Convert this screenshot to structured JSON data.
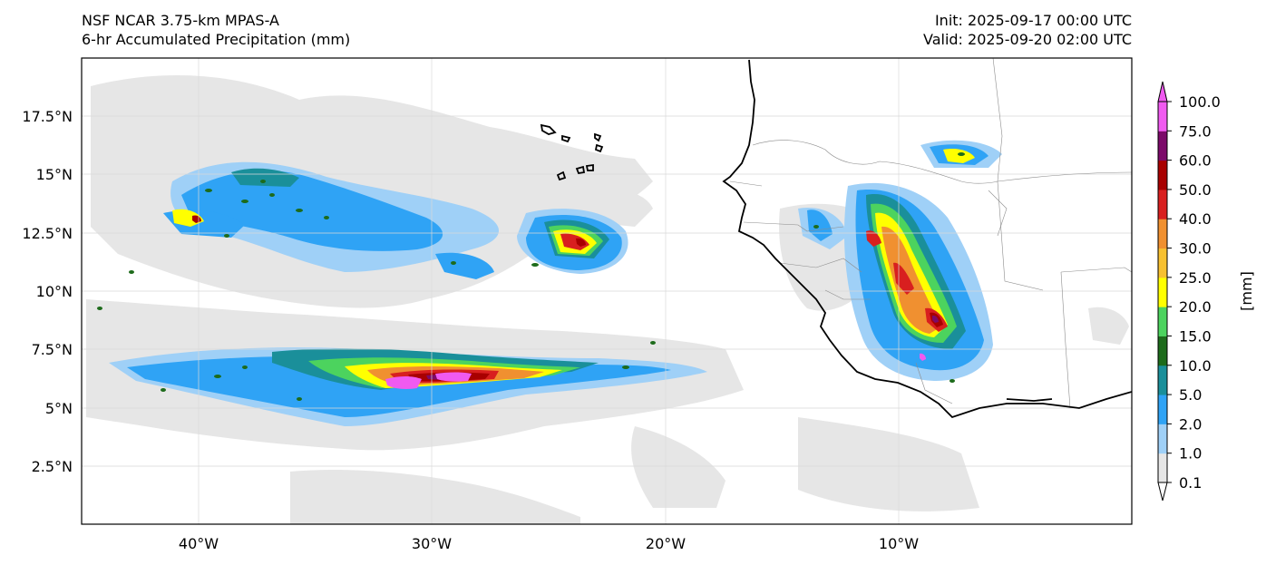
{
  "header": {
    "model": "NSF NCAR 3.75-km MPAS-A",
    "field": "6-hr Accumulated Precipitation (mm)",
    "init": "Init: 2025-09-17 00:00 UTC",
    "valid": "Valid: 2025-09-20 02:00 UTC"
  },
  "axes": {
    "lat_ticks": [
      "17.5°N",
      "15°N",
      "12.5°N",
      "10°N",
      "7.5°N",
      "5°N",
      "2.5°N"
    ],
    "lon_ticks": [
      "40°W",
      "30°W",
      "20°W",
      "10°W"
    ]
  },
  "colorbar": {
    "label": "[mm]",
    "levels": [
      "0.1",
      "1.0",
      "2.0",
      "5.0",
      "10.0",
      "15.0",
      "20.0",
      "25.0",
      "30.0",
      "40.0",
      "50.0",
      "60.0",
      "75.0",
      "100.0"
    ],
    "colors": [
      "#e6e6e6",
      "#9fd0f7",
      "#2fa3f5",
      "#1a8f9a",
      "#1d6b1b",
      "#4cd35e",
      "#ffff00",
      "#f7c030",
      "#f09030",
      "#d81f1f",
      "#a80000",
      "#7c0a6a",
      "#f05af0"
    ]
  },
  "map": {
    "colors": {
      "trace": "#e6e6e6",
      "light": "#9fd0f7",
      "moderate": "#2fa3f5",
      "teal": "#1a8f9a",
      "green": "#1d6b1b",
      "lightgreen": "#4cd35e",
      "yellow": "#ffff00",
      "orange": "#f09030",
      "red": "#d81f1f",
      "darkred": "#a80000",
      "purple": "#7c0a6a",
      "magenta": "#f05af0",
      "coastline": "#000000",
      "border": "#8c8c8c"
    }
  }
}
